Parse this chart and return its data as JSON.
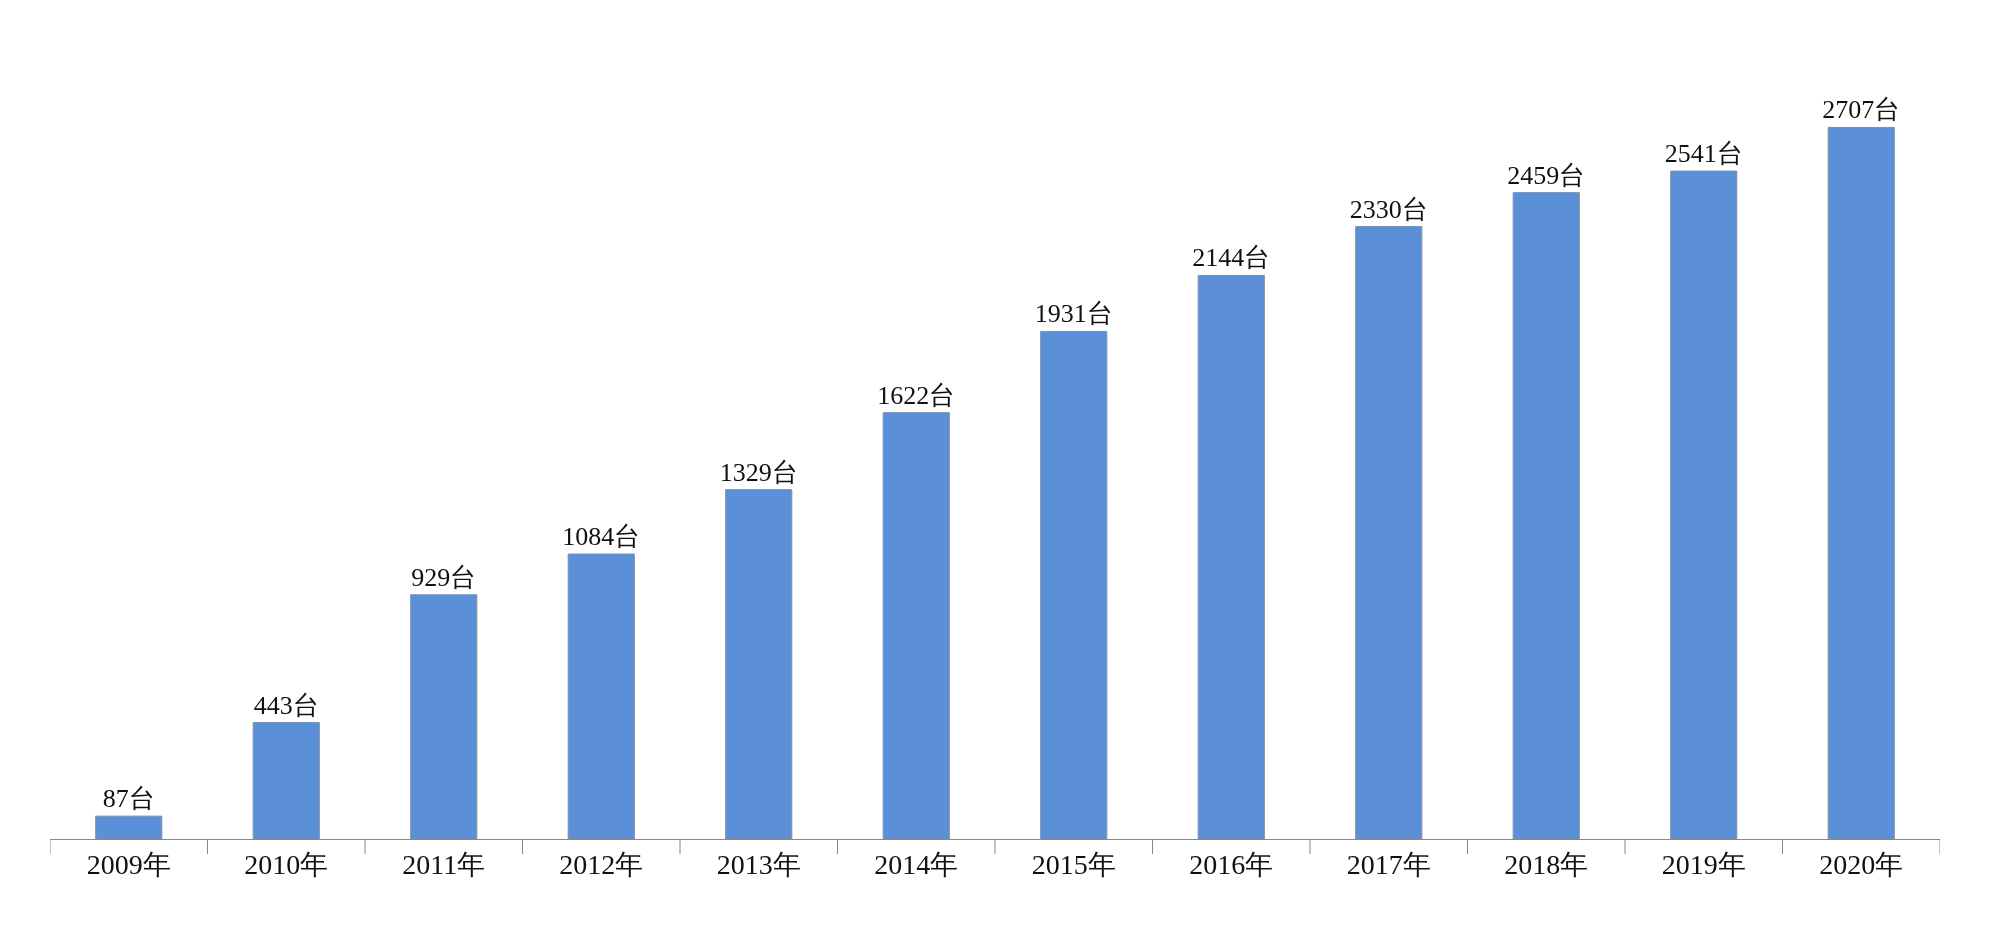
{
  "chart_data": {
    "type": "bar",
    "categories": [
      "2009年",
      "2010年",
      "2011年",
      "2012年",
      "2013年",
      "2014年",
      "2015年",
      "2016年",
      "2017年",
      "2018年",
      "2019年",
      "2020年"
    ],
    "values": [
      87,
      443,
      929,
      1084,
      1329,
      1622,
      1931,
      2144,
      2330,
      2459,
      2541,
      2707
    ],
    "value_labels": [
      "87台",
      "443台",
      "929台",
      "1084台",
      "1329台",
      "1622台",
      "1931台",
      "2144台",
      "2330台",
      "2459台",
      "2541台",
      "2707台"
    ],
    "color": "#5b8fd8"
  }
}
